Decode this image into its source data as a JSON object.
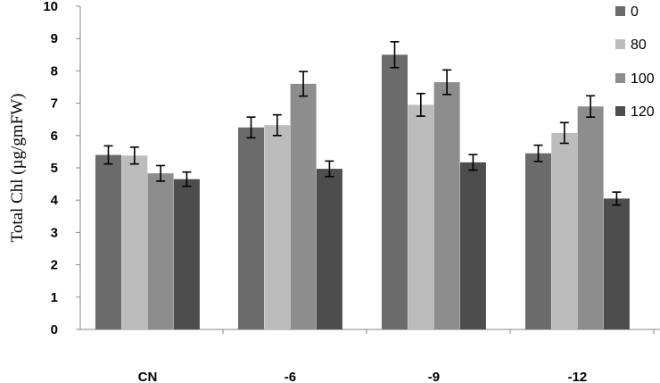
{
  "chart_data": {
    "type": "bar",
    "title": "",
    "xlabel": "",
    "ylabel": "Total Chl (µg/gmFW)",
    "ylim": [
      0,
      10
    ],
    "yticks": [
      0,
      1,
      2,
      3,
      4,
      5,
      6,
      7,
      8,
      9,
      10
    ],
    "categories": [
      "CN",
      "-6",
      "-9",
      "-12"
    ],
    "series": [
      {
        "name": "0",
        "color": "#6b6b6b",
        "values": [
          5.4,
          6.25,
          8.5,
          5.45
        ],
        "errors": [
          0.28,
          0.32,
          0.4,
          0.25
        ]
      },
      {
        "name": "80",
        "color": "#bcbcbc",
        "values": [
          5.38,
          6.32,
          6.95,
          6.08
        ],
        "errors": [
          0.26,
          0.32,
          0.35,
          0.32
        ]
      },
      {
        "name": "100",
        "color": "#8d8d8d",
        "values": [
          4.83,
          7.6,
          7.65,
          6.9
        ],
        "errors": [
          0.24,
          0.38,
          0.38,
          0.33
        ]
      },
      {
        "name": "120",
        "color": "#4d4d4d",
        "values": [
          4.65,
          4.97,
          5.17,
          4.05
        ],
        "errors": [
          0.22,
          0.24,
          0.24,
          0.2
        ]
      }
    ],
    "legend_position": "right",
    "grid": false
  }
}
